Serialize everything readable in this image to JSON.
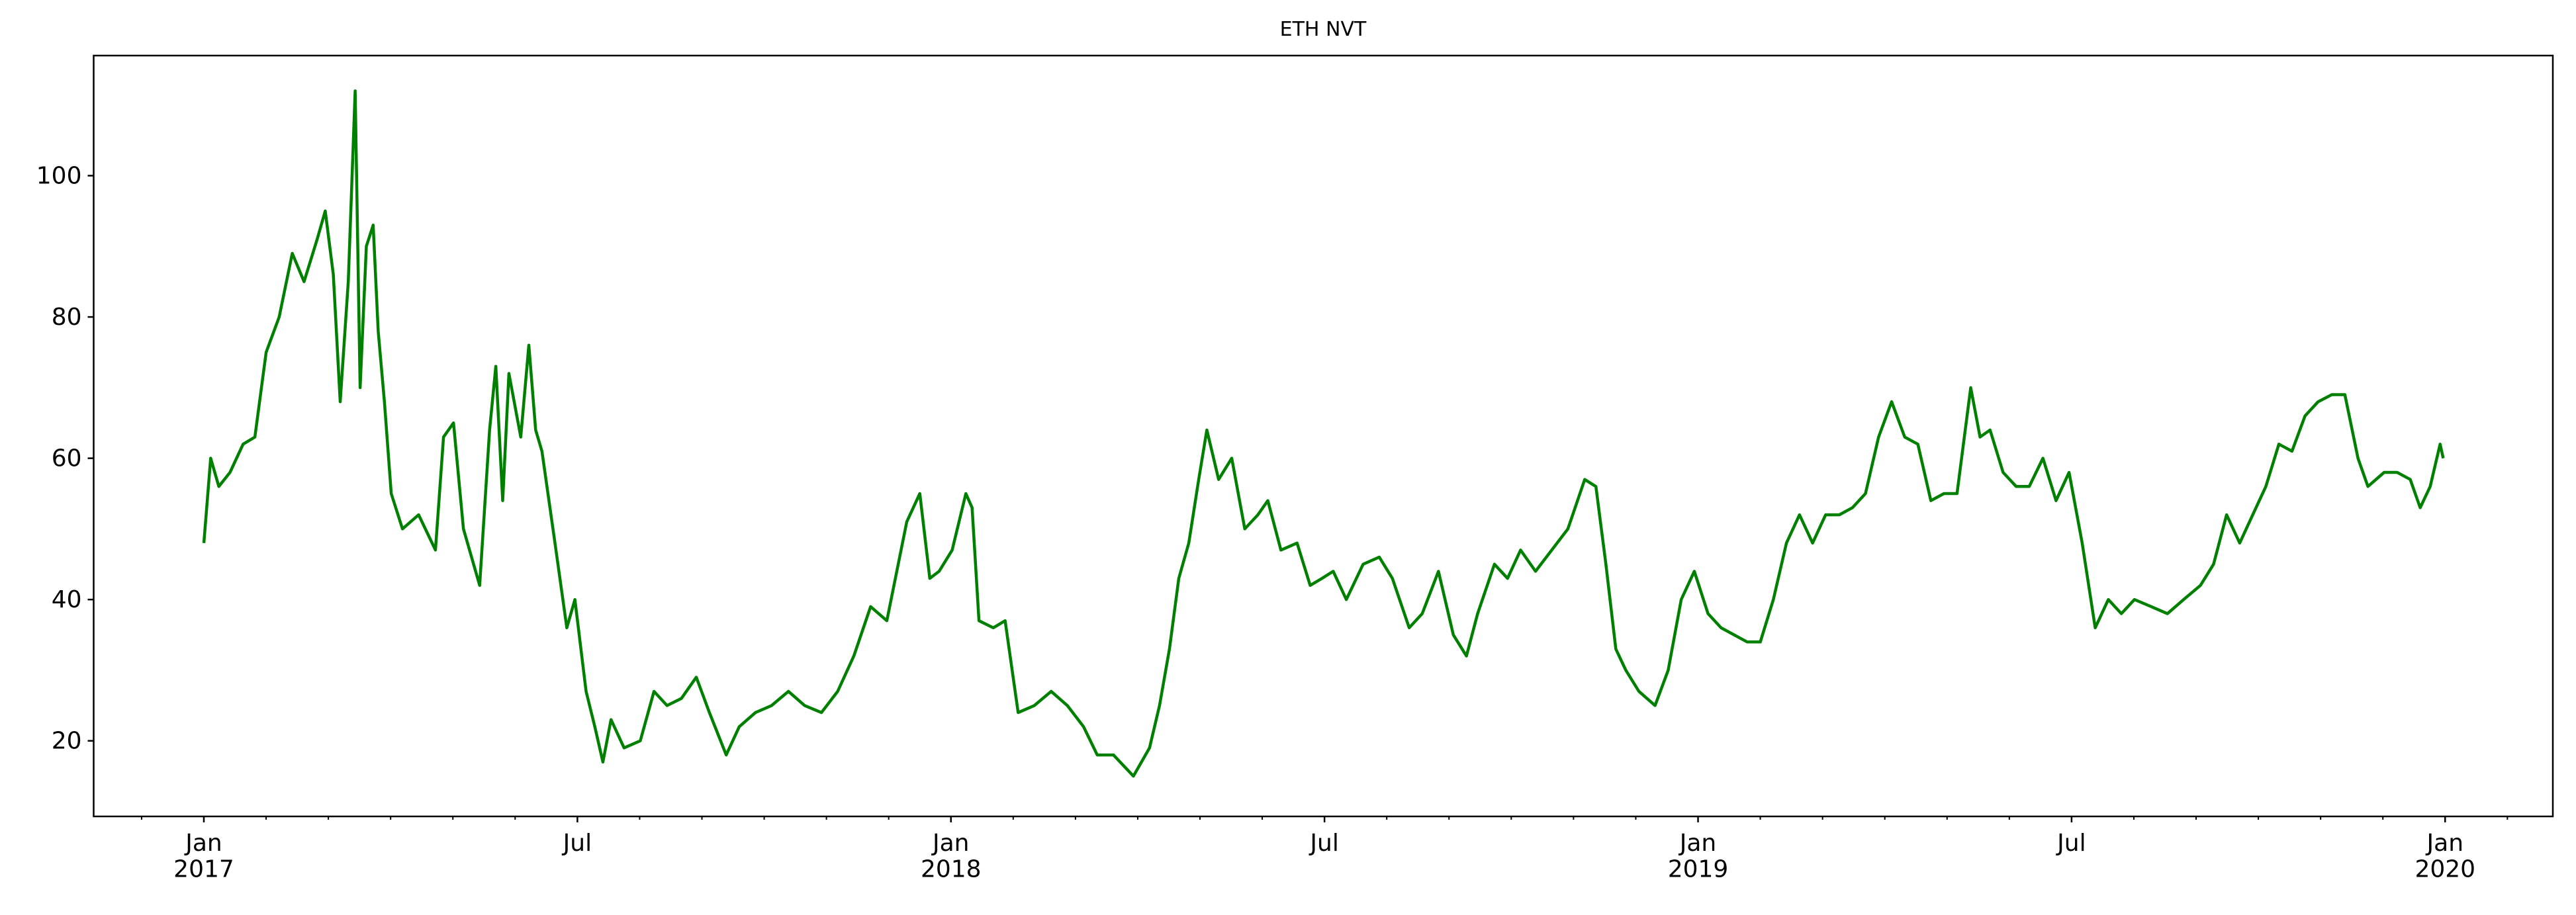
{
  "chart_data": {
    "type": "line",
    "title": "ETH NVT",
    "x": [
      0,
      0.11,
      0.24,
      0.42,
      0.63,
      0.82,
      1.0,
      1.21,
      1.42,
      1.61,
      1.82,
      1.95,
      2.08,
      2.19,
      2.32,
      2.43,
      2.51,
      2.61,
      2.72,
      2.8,
      2.9,
      3.01,
      3.19,
      3.45,
      3.72,
      3.85,
      4.01,
      4.17,
      4.43,
      4.59,
      4.69,
      4.8,
      4.9,
      5.09,
      5.22,
      5.33,
      5.43,
      5.64,
      5.83,
      5.96,
      6.14,
      6.28,
      6.41,
      6.54,
      6.75,
      7.01,
      7.23,
      7.44,
      7.67,
      7.91,
      8.12,
      8.39,
      8.6,
      8.86,
      9.12,
      9.39,
      9.65,
      9.92,
      10.18,
      10.44,
      10.71,
      10.97,
      11.29,
      11.5,
      11.66,
      11.81,
      12.02,
      12.24,
      12.34,
      12.45,
      12.68,
      12.87,
      13.08,
      13.34,
      13.61,
      13.87,
      14.13,
      14.35,
      14.61,
      14.93,
      15.19,
      15.35,
      15.51,
      15.66,
      15.82,
      15.98,
      16.11,
      16.3,
      16.51,
      16.72,
      16.93,
      17.09,
      17.3,
      17.56,
      17.77,
      17.96,
      18.14,
      18.35,
      18.62,
      18.88,
      19.09,
      19.36,
      19.57,
      19.83,
      20.07,
      20.28,
      20.46,
      20.73,
      20.94,
      21.15,
      21.39,
      21.65,
      21.91,
      22.18,
      22.36,
      22.52,
      22.68,
      22.84,
      23.05,
      23.31,
      23.52,
      23.73,
      23.94,
      24.16,
      24.37,
      24.58,
      24.79,
      25.0,
      25.21,
      25.42,
      25.63,
      25.84,
      26.05,
      26.27,
      26.48,
      26.69,
      26.9,
      27.11,
      27.32,
      27.53,
      27.74,
      27.95,
      28.16,
      28.38,
      28.53,
      28.69,
      28.9,
      29.11,
      29.32,
      29.54,
      29.75,
      29.96,
      30.17,
      30.38,
      30.59,
      30.8,
      31.01,
      31.28,
      31.54,
      31.8,
      32.07,
      32.28,
      32.49,
      32.7,
      32.91,
      33.12,
      33.33,
      33.54,
      33.75,
      33.96,
      34.18,
      34.39,
      34.6,
      34.76,
      35.02,
      35.23,
      35.44,
      35.6,
      35.76,
      35.92,
      35.97
    ],
    "series": [
      {
        "color": "#008000",
        "values": [
          48,
          60,
          56,
          58,
          62,
          63,
          75,
          80,
          89,
          85,
          91,
          95,
          86,
          68,
          85,
          112,
          70,
          90,
          93,
          78,
          68,
          55,
          50,
          52,
          47,
          63,
          65,
          50,
          42,
          64,
          73,
          54,
          72,
          63,
          76,
          64,
          61,
          48,
          36,
          40,
          27,
          22,
          17,
          23,
          19,
          20,
          27,
          25,
          26,
          29,
          24,
          18,
          22,
          24,
          25,
          27,
          25,
          24,
          27,
          32,
          39,
          37,
          51,
          55,
          43,
          44,
          47,
          55,
          53,
          37,
          36,
          37,
          24,
          25,
          27,
          25,
          22,
          18,
          18,
          15,
          19,
          25,
          33,
          43,
          48,
          57,
          64,
          57,
          60,
          50,
          52,
          54,
          47,
          48,
          42,
          43,
          44,
          40,
          45,
          46,
          43,
          36,
          38,
          44,
          35,
          32,
          38,
          45,
          43,
          47,
          44,
          47,
          50,
          57,
          56,
          45,
          33,
          30,
          27,
          25,
          30,
          40,
          44,
          38,
          36,
          35,
          34,
          34,
          40,
          48,
          52,
          48,
          52,
          52,
          53,
          55,
          63,
          68,
          63,
          62,
          54,
          55,
          55,
          70,
          63,
          64,
          58,
          56,
          56,
          60,
          54,
          58,
          48,
          36,
          40,
          38,
          40,
          39,
          38,
          40,
          42,
          45,
          52,
          48,
          52,
          56,
          62,
          61,
          66,
          68,
          69,
          69,
          60,
          56,
          58,
          58,
          57,
          53,
          56,
          62,
          60
        ]
      }
    ],
    "xlim": [
      -1.77,
      37.73
    ],
    "xticks": [
      {
        "value": 0,
        "label": "Jan\n2017"
      },
      {
        "value": 6,
        "label": "Jul"
      },
      {
        "value": 12,
        "label": "Jan\n2018"
      },
      {
        "value": 18,
        "label": "Jul"
      },
      {
        "value": 24,
        "label": "Jan\n2019"
      },
      {
        "value": 30,
        "label": "Jul"
      },
      {
        "value": 36,
        "label": "Jan\n2020"
      }
    ],
    "ylim": [
      9.3,
      117
    ],
    "yticks": [
      20,
      40,
      60,
      80,
      100
    ],
    "grid": false
  }
}
